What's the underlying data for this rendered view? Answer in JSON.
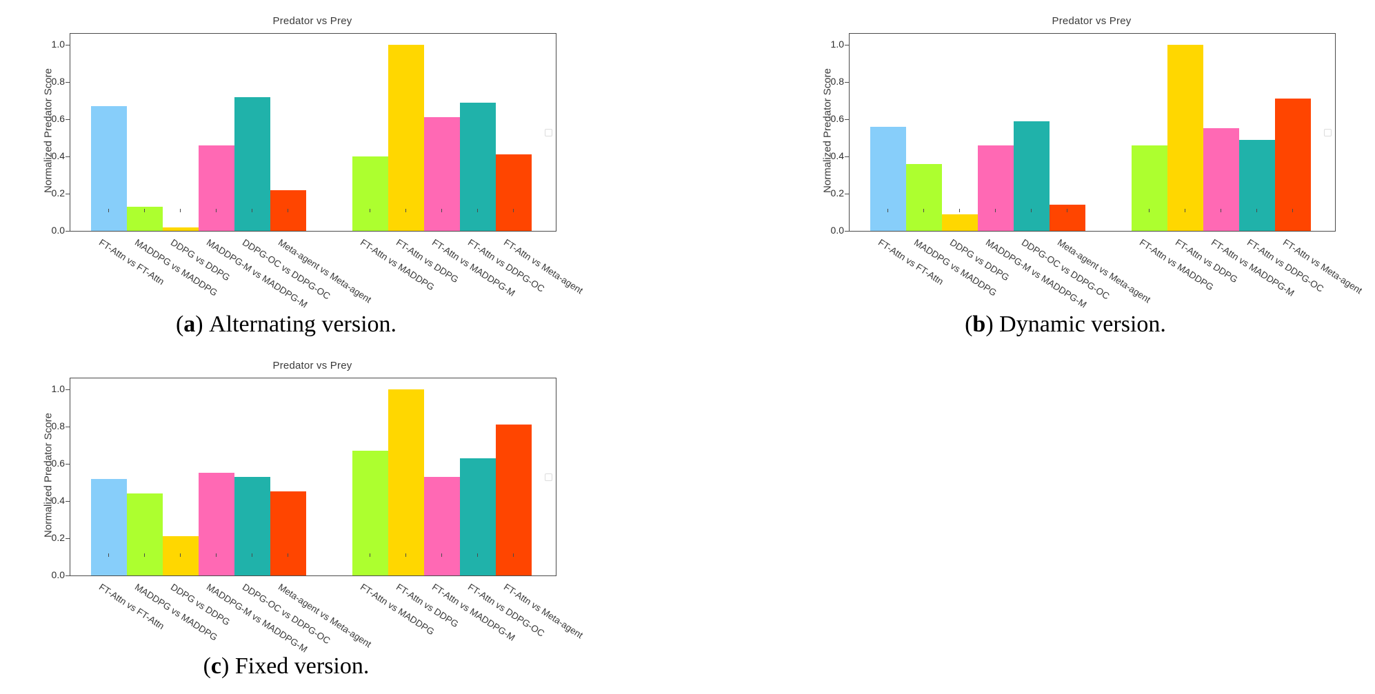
{
  "chart_data": [
    {
      "type": "bar",
      "panel": "a",
      "title": "Predator vs Prey",
      "ylabel": "Normalized Predator Score",
      "ylim": [
        0.0,
        1.055
      ],
      "yticks": [
        "0.0",
        "0.2",
        "0.4",
        "0.6",
        "0.8",
        "1.0"
      ],
      "grid": "off",
      "legend": "empty-placeholder-right",
      "caption": {
        "letter": "a",
        "text": "Alternating version."
      },
      "group_split": 6,
      "categories": [
        "FT-Attn vs FT-Attn",
        "MADDPG vs MADDPG",
        "DDPG vs DDPG",
        "MADDPG-M vs MADDPG-M",
        "DDPG-OC vs DDPG-OC",
        "Meta-agent vs Meta-agent",
        "FT-Attn vs MADDPG",
        "FT-Attn vs DDPG",
        "FT-Attn vs MADDPG-M",
        "FT-Attn vs DDPG-OC",
        "FT-Attn vs Meta-agent"
      ],
      "values": [
        0.67,
        0.13,
        0.02,
        0.46,
        0.72,
        0.22,
        0.4,
        1.0,
        0.61,
        0.69,
        0.41
      ],
      "colors": [
        "#87CEFA",
        "#ADFF2F",
        "#FFD700",
        "#FF69B4",
        "#20B2AA",
        "#FF4500",
        "#ADFF2F",
        "#FFD700",
        "#FF69B4",
        "#20B2AA",
        "#FF4500"
      ]
    },
    {
      "type": "bar",
      "panel": "b",
      "title": "Predator vs Prey",
      "ylabel": "Normalized Predator Score",
      "ylim": [
        0.0,
        1.055
      ],
      "yticks": [
        "0.0",
        "0.2",
        "0.4",
        "0.6",
        "0.8",
        "1.0"
      ],
      "grid": "off",
      "legend": "empty-placeholder-right",
      "caption": {
        "letter": "b",
        "text": "Dynamic version."
      },
      "group_split": 6,
      "categories": [
        "FT-Attn vs FT-Attn",
        "MADDPG vs MADDPG",
        "DDPG vs DDPG",
        "MADDPG-M vs MADDPG-M",
        "DDPG-OC vs DDPG-OC",
        "Meta-agent vs Meta-agent",
        "FT-Attn vs MADDPG",
        "FT-Attn vs DDPG",
        "FT-Attn vs MADDPG-M",
        "FT-Attn vs DDPG-OC",
        "FT-Attn vs Meta-agent"
      ],
      "values": [
        0.56,
        0.36,
        0.09,
        0.46,
        0.59,
        0.14,
        0.46,
        1.0,
        0.55,
        0.49,
        0.71
      ],
      "colors": [
        "#87CEFA",
        "#ADFF2F",
        "#FFD700",
        "#FF69B4",
        "#20B2AA",
        "#FF4500",
        "#ADFF2F",
        "#FFD700",
        "#FF69B4",
        "#20B2AA",
        "#FF4500"
      ]
    },
    {
      "type": "bar",
      "panel": "c",
      "title": "Predator vs Prey",
      "ylabel": "Normalized Predator Score",
      "ylim": [
        0.0,
        1.055
      ],
      "yticks": [
        "0.0",
        "0.2",
        "0.4",
        "0.6",
        "0.8",
        "1.0"
      ],
      "grid": "off",
      "legend": "empty-placeholder-right",
      "caption": {
        "letter": "c",
        "text": "Fixed version."
      },
      "group_split": 6,
      "categories": [
        "FT-Attn vs FT-Attn",
        "MADDPG vs MADDPG",
        "DDPG vs DDPG",
        "MADDPG-M vs MADDPG-M",
        "DDPG-OC vs DDPG-OC",
        "Meta-agent vs Meta-agent",
        "FT-Attn vs MADDPG",
        "FT-Attn vs DDPG",
        "FT-Attn vs MADDPG-M",
        "FT-Attn vs DDPG-OC",
        "FT-Attn vs Meta-agent"
      ],
      "values": [
        0.52,
        0.44,
        0.21,
        0.55,
        0.53,
        0.45,
        0.67,
        1.0,
        0.53,
        0.63,
        0.81
      ],
      "colors": [
        "#87CEFA",
        "#ADFF2F",
        "#FFD700",
        "#FF69B4",
        "#20B2AA",
        "#FF4500",
        "#ADFF2F",
        "#FFD700",
        "#FF69B4",
        "#20B2AA",
        "#FF4500"
      ]
    }
  ]
}
